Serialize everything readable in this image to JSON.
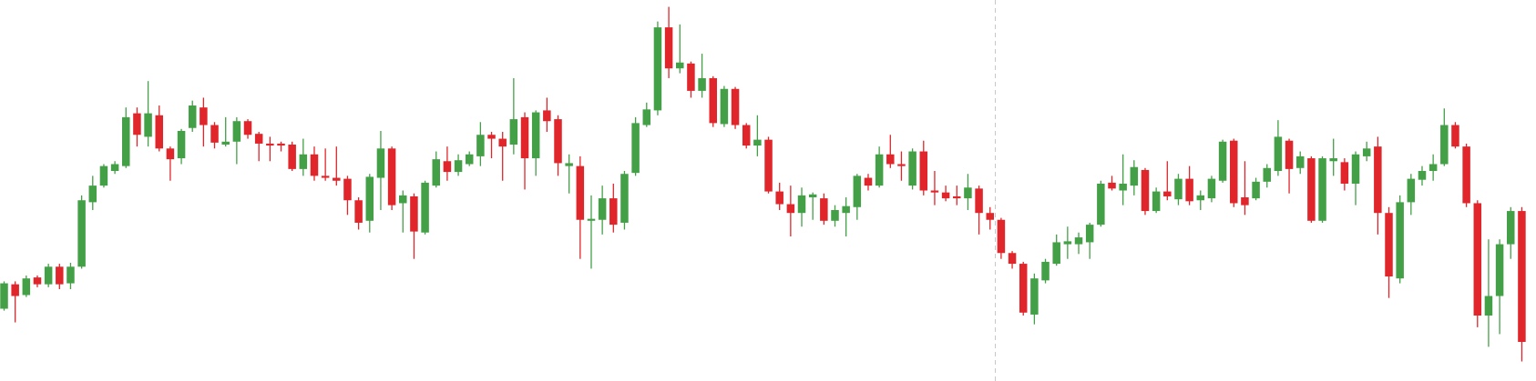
{
  "chart_data": {
    "type": "candlestick",
    "ylim": [
      0,
      390
    ],
    "up_color": "#43a047",
    "down_color": "#e0262a",
    "open": [
      74,
      99,
      88,
      106,
      99,
      117,
      100,
      117,
      183,
      200,
      215,
      220,
      274,
      250,
      272,
      238,
      228,
      259,
      280,
      262,
      242,
      245,
      266,
      253,
      243,
      243,
      242,
      217,
      232,
      210,
      208,
      207,
      185,
      164,
      208,
      238,
      182,
      189,
      152,
      200,
      225,
      214,
      222,
      230,
      252,
      248,
      242,
      270,
      228,
      277,
      268,
      220,
      220,
      164,
      165,
      187,
      162,
      213,
      262,
      277,
      362,
      320,
      325,
      297,
      310,
      263,
      299,
      262,
      241,
      247,
      194,
      181,
      172,
      188,
      187,
      164,
      172,
      178,
      208,
      200,
      232,
      222,
      200,
      235,
      195,
      193,
      189,
      187,
      197,
      172,
      165,
      131,
      120,
      68,
      103,
      120,
      140,
      140,
      142,
      160,
      203,
      195,
      200,
      216,
      174,
      194,
      186,
      207,
      185,
      187,
      205,
      246,
      188,
      187,
      204,
      215,
      246,
      218,
      228,
      164,
      225,
      224,
      202,
      230,
      240,
      172,
      105,
      183,
      206,
      215,
      222,
      262,
      240,
      182,
      67,
      87,
      140,
      174
    ],
    "high": [
      102,
      102,
      108,
      108,
      120,
      120,
      121,
      190,
      210,
      222,
      225,
      280,
      280,
      307,
      282,
      240,
      258,
      287,
      290,
      265,
      270,
      270,
      268,
      255,
      250,
      245,
      245,
      248,
      240,
      238,
      240,
      210,
      188,
      212,
      256,
      240,
      195,
      192,
      205,
      235,
      240,
      232,
      235,
      265,
      255,
      255,
      310,
      275,
      277,
      290,
      272,
      232,
      230,
      190,
      200,
      202,
      215,
      270,
      285,
      368,
      383,
      365,
      327,
      335,
      312,
      302,
      301,
      264,
      272,
      250,
      203,
      200,
      198,
      193,
      192,
      180,
      188,
      212,
      212,
      240,
      252,
      235,
      238,
      246,
      215,
      200,
      200,
      212,
      200,
      178,
      167,
      133,
      122,
      110,
      125,
      150,
      158,
      152,
      162,
      205,
      210,
      232,
      226,
      218,
      198,
      225,
      212,
      220,
      195,
      210,
      247,
      248,
      225,
      208,
      222,
      267,
      248,
      235,
      230,
      230,
      248,
      228,
      235,
      245,
      250,
      178,
      190,
      212,
      220,
      232,
      279,
      265,
      243,
      185,
      145,
      145,
      178,
      178
    ],
    "low": [
      72,
      60,
      86,
      96,
      96,
      94,
      94,
      115,
      175,
      198,
      212,
      218,
      240,
      240,
      235,
      205,
      222,
      255,
      240,
      238,
      240,
      222,
      248,
      225,
      225,
      235,
      215,
      210,
      205,
      205,
      200,
      170,
      155,
      152,
      175,
      175,
      152,
      125,
      150,
      198,
      205,
      210,
      220,
      220,
      228,
      205,
      232,
      196,
      210,
      255,
      210,
      192,
      125,
      115,
      150,
      152,
      155,
      210,
      260,
      272,
      310,
      315,
      290,
      290,
      260,
      260,
      258,
      238,
      230,
      192,
      175,
      148,
      158,
      165,
      160,
      158,
      148,
      165,
      195,
      198,
      218,
      205,
      196,
      190,
      180,
      184,
      180,
      175,
      150,
      155,
      125,
      115,
      67,
      58,
      100,
      118,
      125,
      130,
      125,
      158,
      195,
      180,
      190,
      170,
      172,
      185,
      180,
      180,
      175,
      183,
      203,
      178,
      170,
      185,
      198,
      210,
      192,
      212,
      162,
      162,
      210,
      195,
      180,
      225,
      150,
      85,
      100,
      170,
      200,
      205,
      220,
      238,
      178,
      55,
      35,
      48,
      125,
      20
    ],
    "close": [
      100,
      87,
      105,
      99,
      117,
      99,
      117,
      185,
      200,
      220,
      222,
      270,
      252,
      274,
      238,
      227,
      256,
      282,
      262,
      244,
      245,
      266,
      252,
      243,
      241,
      241,
      217,
      232,
      210,
      208,
      205,
      185,
      162,
      209,
      238,
      180,
      190,
      153,
      203,
      227,
      214,
      226,
      232,
      252,
      248,
      240,
      268,
      228,
      275,
      266,
      223,
      223,
      165,
      166,
      187,
      160,
      212,
      264,
      278,
      362,
      320,
      326,
      297,
      310,
      264,
      299,
      262,
      241,
      247,
      194,
      181,
      172,
      190,
      191,
      164,
      175,
      179,
      210,
      200,
      232,
      222,
      220,
      235,
      195,
      193,
      187,
      187,
      198,
      172,
      165,
      131,
      120,
      70,
      105,
      122,
      142,
      143,
      147,
      160,
      202,
      197,
      202,
      219,
      174,
      194,
      189,
      207,
      184,
      190,
      207,
      245,
      182,
      180,
      204,
      218,
      250,
      217,
      230,
      164,
      228,
      228,
      202,
      232,
      238,
      172,
      107,
      183,
      207,
      215,
      222,
      262,
      240,
      182,
      67,
      87,
      140,
      174,
      40
    ]
  }
}
